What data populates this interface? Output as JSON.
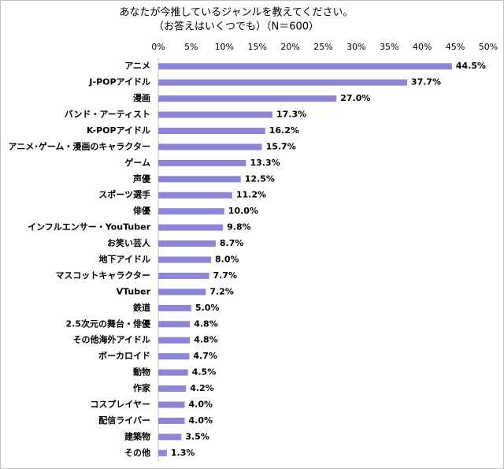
{
  "chart_data": {
    "type": "bar",
    "orientation": "horizontal",
    "title": "あなたが今推しているジャンルを教えてください。",
    "subtitle": "（お答えはいくつでも）（N＝600）",
    "categories": [
      "アニメ",
      "J-POPアイドル",
      "漫画",
      "バンド・アーティスト",
      "K-POPアイドル",
      "アニメ･ゲーム・漫画のキャラクター",
      "ゲーム",
      "声優",
      "スポーツ選手",
      "俳優",
      "インフルエンサー・YouTuber",
      "お笑い芸人",
      "地下アイドル",
      "マスコットキャラクター",
      "VTuber",
      "鉄道",
      "2.5次元の舞台・俳優",
      "その他海外アイドル",
      "ボーカロイド",
      "動物",
      "作家",
      "コスプレイヤー",
      "配信ライバー",
      "建築物",
      "その他"
    ],
    "values": [
      44.5,
      37.7,
      27.0,
      17.3,
      16.2,
      15.7,
      13.3,
      12.5,
      11.2,
      10.0,
      9.8,
      8.7,
      8.0,
      7.7,
      7.2,
      5.0,
      4.8,
      4.8,
      4.7,
      4.5,
      4.2,
      4.0,
      4.0,
      3.5,
      1.3
    ],
    "value_labels": [
      "44.5%",
      "37.7%",
      "27.0%",
      "17.3%",
      "16.2%",
      "15.7%",
      "13.3%",
      "12.5%",
      "11.2%",
      "10.0%",
      "9.8%",
      "8.7%",
      "8.0%",
      "7.7%",
      "7.2%",
      "5.0%",
      "4.8%",
      "4.8%",
      "4.7%",
      "4.5%",
      "4.2%",
      "4.0%",
      "4.0%",
      "3.5%",
      "1.3%"
    ],
    "color": "#8c85d8",
    "xlim": [
      0,
      50
    ],
    "xticks": [
      {
        "value": 0,
        "label": "0%"
      },
      {
        "value": 5,
        "label": "5%"
      },
      {
        "value": 10,
        "label": "10%"
      },
      {
        "value": 15,
        "label": "15%"
      },
      {
        "value": 20,
        "label": "20%"
      },
      {
        "value": 25,
        "label": "25%"
      },
      {
        "value": 30,
        "label": "30%"
      },
      {
        "value": 35,
        "label": "35%"
      },
      {
        "value": 40,
        "label": "40%"
      },
      {
        "value": 45,
        "label": "45%"
      },
      {
        "value": 50,
        "label": "50%"
      }
    ],
    "grid": false
  }
}
